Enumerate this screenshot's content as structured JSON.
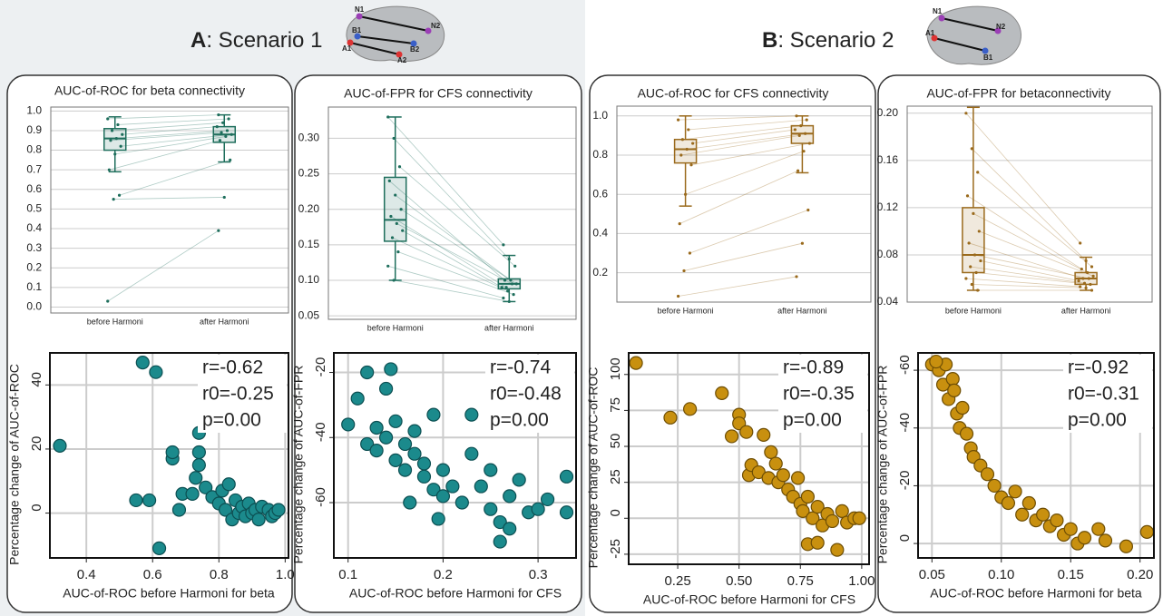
{
  "figure": {
    "panel_a": {
      "letter": "A",
      "title": ": Scenario 1",
      "brain_labels": [
        "N1",
        "N2",
        "B1",
        "B2",
        "A1",
        "A2"
      ]
    },
    "panel_b": {
      "letter": "B",
      "title": ": Scenario 2",
      "brain_labels": [
        "N1",
        "N2",
        "A1",
        "B1"
      ]
    }
  },
  "chart_data": [
    {
      "type": "box",
      "title": "AUC-of-ROC for beta connectivity",
      "color": "#1e6e5c",
      "categories": [
        "before Harmoni",
        "after Harmoni"
      ],
      "boxes": [
        {
          "whislo": 0.69,
          "q1": 0.8,
          "med": 0.86,
          "q3": 0.91,
          "whishi": 0.97
        },
        {
          "whislo": 0.74,
          "q1": 0.84,
          "med": 0.88,
          "q3": 0.92,
          "whishi": 0.98
        }
      ],
      "points": [
        [
          0.03,
          0.55,
          0.57,
          0.7,
          0.78,
          0.82,
          0.85,
          0.86,
          0.88,
          0.9,
          0.93,
          0.96
        ],
        [
          0.39,
          0.56,
          0.75,
          0.85,
          0.87,
          0.88,
          0.89,
          0.9,
          0.92,
          0.94,
          0.96,
          0.98
        ]
      ],
      "ylim": [
        -0.03,
        1.02
      ],
      "yticks": [
        {
          "value": 0,
          "label": "0.0"
        },
        0.1,
        0.2,
        0.3,
        0.4,
        0.5,
        0.6,
        0.7,
        0.8,
        0.9,
        {
          "value": 1,
          "label": "1.0"
        }
      ],
      "grid": true
    },
    {
      "type": "box",
      "title": "AUC-of-FPR for CFS connectivity",
      "color": "#1e6e5c",
      "categories": [
        "before Harmoni",
        "after Harmoni"
      ],
      "boxes": [
        {
          "whislo": 0.1,
          "q1": 0.155,
          "med": 0.185,
          "q3": 0.245,
          "whishi": 0.33
        },
        {
          "whislo": 0.07,
          "q1": 0.088,
          "med": 0.095,
          "q3": 0.102,
          "whishi": 0.135
        }
      ],
      "points": [
        [
          0.33,
          0.3,
          0.26,
          0.24,
          0.22,
          0.2,
          0.19,
          0.18,
          0.17,
          0.16,
          0.14,
          0.12,
          0.1
        ],
        [
          0.15,
          0.13,
          0.12,
          0.1,
          0.1,
          0.095,
          0.09,
          0.095,
          0.09,
          0.085,
          0.08,
          0.075,
          0.07
        ]
      ],
      "ylim": [
        0.045,
        0.344
      ],
      "yticks": [
        0.05,
        {
          "value": 0.1,
          "label": "0.10"
        },
        0.15,
        {
          "value": 0.2,
          "label": "0.20"
        },
        0.25,
        {
          "value": 0.3,
          "label": "0.30"
        }
      ],
      "grid": true
    },
    {
      "type": "box",
      "title": "AUC-of-ROC for CFS connectivity",
      "color": "#9a6a1c",
      "categories": [
        "before Harmoni",
        "after Harmoni"
      ],
      "boxes": [
        {
          "whislo": 0.54,
          "q1": 0.76,
          "med": 0.83,
          "q3": 0.88,
          "whishi": 1.0
        },
        {
          "whislo": 0.71,
          "q1": 0.86,
          "med": 0.91,
          "q3": 0.95,
          "whishi": 1.0
        }
      ],
      "points": [
        [
          0.08,
          0.21,
          0.3,
          0.45,
          0.6,
          0.75,
          0.8,
          0.83,
          0.86,
          0.88,
          0.93,
          0.98
        ],
        [
          0.18,
          0.35,
          0.52,
          0.72,
          0.82,
          0.86,
          0.9,
          0.91,
          0.93,
          0.95,
          0.98,
          1.0
        ]
      ],
      "ylim": [
        0.05,
        1.05
      ],
      "yticks": [
        0.2,
        0.4,
        0.6,
        0.8,
        {
          "value": 1,
          "label": "1.0"
        }
      ],
      "grid": true
    },
    {
      "type": "box",
      "title": "AUC-of-FPR for betaconnectivity",
      "color": "#9a6a1c",
      "categories": [
        "before Harmoni",
        "after Harmoni"
      ],
      "boxes": [
        {
          "whislo": 0.05,
          "q1": 0.065,
          "med": 0.08,
          "q3": 0.12,
          "whishi": 0.205
        },
        {
          "whislo": 0.05,
          "q1": 0.055,
          "med": 0.06,
          "q3": 0.065,
          "whishi": 0.078
        }
      ],
      "points": [
        [
          0.2,
          0.17,
          0.15,
          0.13,
          0.115,
          0.1,
          0.09,
          0.08,
          0.075,
          0.07,
          0.065,
          0.06,
          0.055,
          0.05
        ],
        [
          0.09,
          0.075,
          0.07,
          0.068,
          0.065,
          0.062,
          0.06,
          0.06,
          0.058,
          0.056,
          0.055,
          0.053,
          0.052,
          0.05
        ]
      ],
      "ylim": [
        0.04,
        0.206
      ],
      "yticks": [
        0.04,
        0.08,
        0.12,
        0.16,
        {
          "value": 0.2,
          "label": "0.20"
        }
      ],
      "grid": true
    },
    {
      "type": "scatter",
      "xlabel": "AUC-of-ROC before Harmoni for beta",
      "ylabel": "Percentage change of AUC-of-ROC",
      "color": "#1b8a8c",
      "annotations": [
        "r=-0.62",
        "r0=-0.25",
        "p=0.00"
      ],
      "x": [
        0.32,
        0.55,
        0.57,
        0.59,
        0.61,
        0.62,
        0.66,
        0.66,
        0.68,
        0.69,
        0.72,
        0.73,
        0.74,
        0.74,
        0.74,
        0.76,
        0.78,
        0.8,
        0.81,
        0.82,
        0.83,
        0.84,
        0.85,
        0.86,
        0.87,
        0.88,
        0.89,
        0.9,
        0.91,
        0.92,
        0.93,
        0.95,
        0.96,
        0.97,
        0.98
      ],
      "y": [
        21,
        4,
        47,
        4,
        44,
        -11,
        17,
        19,
        1,
        6,
        6,
        11,
        25,
        19,
        15,
        8,
        5,
        3,
        7,
        1,
        9,
        -2,
        4,
        0,
        2,
        -1,
        3,
        0,
        1,
        -2,
        2,
        1,
        -1,
        0,
        1
      ],
      "xlim": [
        0.29,
        1.01
      ],
      "xticks": [
        0.4,
        0.6,
        0.8,
        {
          "value": 1,
          "label": "1.0"
        }
      ],
      "ylim": [
        -14,
        50
      ],
      "yticks": [
        0,
        20,
        40
      ],
      "grid": true
    },
    {
      "type": "scatter",
      "xlabel": "AUC-of-ROC before Harmoni for CFS",
      "ylabel": "Percentage change of AUC-of-FPR",
      "color": "#1b8a8c",
      "annotations": [
        "r=-0.74",
        "r0=-0.48",
        "p=0.00"
      ],
      "x": [
        0.11,
        0.12,
        0.13,
        0.14,
        0.145,
        0.1,
        0.12,
        0.13,
        0.14,
        0.15,
        0.16,
        0.17,
        0.15,
        0.16,
        0.17,
        0.18,
        0.19,
        0.18,
        0.19,
        0.2,
        0.2,
        0.21,
        0.22,
        0.23,
        0.23,
        0.24,
        0.25,
        0.25,
        0.26,
        0.26,
        0.27,
        0.27,
        0.28,
        0.29,
        0.3,
        0.31,
        0.33,
        0.33,
        0.165,
        0.195
      ],
      "y": [
        -28,
        -20,
        -37,
        -25,
        -19,
        -36,
        -42,
        -44,
        -40,
        -35,
        -42,
        -38,
        -47,
        -50,
        -45,
        -48,
        -33,
        -52,
        -56,
        -58,
        -50,
        -55,
        -60,
        -33,
        -45,
        -55,
        -50,
        -62,
        -66,
        -72,
        -68,
        -58,
        -53,
        -63,
        -62,
        -59,
        -52,
        -63,
        -60,
        -65
      ],
      "xlim": [
        0.085,
        0.34
      ],
      "xticks": [
        0.1,
        0.2,
        0.3
      ],
      "ylim": [
        -77,
        -14
      ],
      "yticks": [
        -20,
        -40,
        -60
      ],
      "grid": true
    },
    {
      "type": "scatter",
      "xlabel": "AUC-of-ROC before Harmoni for CFS",
      "ylabel": "Percentage change of AUC-of-ROC",
      "color": "#c8900f",
      "annotations": [
        "r=-0.89",
        "r0=-0.35",
        "p=0.00"
      ],
      "x": [
        0.08,
        0.22,
        0.3,
        0.43,
        0.47,
        0.5,
        0.5,
        0.53,
        0.54,
        0.55,
        0.58,
        0.6,
        0.62,
        0.63,
        0.65,
        0.66,
        0.68,
        0.7,
        0.72,
        0.74,
        0.75,
        0.76,
        0.78,
        0.8,
        0.82,
        0.84,
        0.86,
        0.88,
        0.9,
        0.92,
        0.94,
        0.97,
        0.99,
        0.78,
        0.82
      ],
      "y": [
        108,
        70,
        76,
        87,
        57,
        72,
        66,
        60,
        30,
        37,
        32,
        58,
        28,
        46,
        38,
        25,
        30,
        20,
        15,
        28,
        10,
        5,
        15,
        0,
        8,
        -5,
        3,
        -2,
        -22,
        5,
        -3,
        0,
        0,
        -18,
        -17
      ],
      "xlim": [
        0.05,
        1.03
      ],
      "xticks": [
        0.25,
        {
          "value": 0.5,
          "label": "0.50"
        },
        0.75,
        {
          "value": 1,
          "label": "1.00"
        }
      ],
      "ylim": [
        -32,
        115
      ],
      "yticks": [
        -25,
        0,
        25,
        50,
        75,
        100
      ],
      "grid": true
    },
    {
      "type": "scatter",
      "xlabel": "AUC-of-ROC before Harmoni for beta",
      "ylabel": "Percentage change of AUC-of-FPR",
      "color": "#c8900f",
      "annotations": [
        "r=-0.92",
        "r0=-0.31",
        "p=0.00"
      ],
      "x": [
        0.05,
        0.055,
        0.06,
        0.058,
        0.062,
        0.065,
        0.068,
        0.07,
        0.072,
        0.075,
        0.078,
        0.08,
        0.085,
        0.09,
        0.095,
        0.1,
        0.105,
        0.11,
        0.115,
        0.12,
        0.125,
        0.13,
        0.135,
        0.14,
        0.145,
        0.15,
        0.155,
        0.16,
        0.17,
        0.175,
        0.19,
        0.205,
        0.053,
        0.066
      ],
      "y": [
        -62,
        -60,
        -62,
        -55,
        -50,
        -57,
        -45,
        -40,
        -47,
        -38,
        -33,
        -30,
        -27,
        -24,
        -20,
        -16,
        -14,
        -18,
        -10,
        -14,
        -8,
        -10,
        -6,
        -8,
        -3,
        -5,
        0,
        -2,
        -5,
        -1,
        1,
        -4,
        -63,
        -53
      ],
      "xlim": [
        0.04,
        0.21
      ],
      "xticks": [
        0.05,
        {
          "value": 0.1,
          "label": "0.10"
        },
        0.15,
        {
          "value": 0.2,
          "label": "0.20"
        }
      ],
      "ylim": [
        5,
        -66
      ],
      "yticks": [
        -60,
        -40,
        -20,
        0
      ],
      "grid": true
    }
  ]
}
